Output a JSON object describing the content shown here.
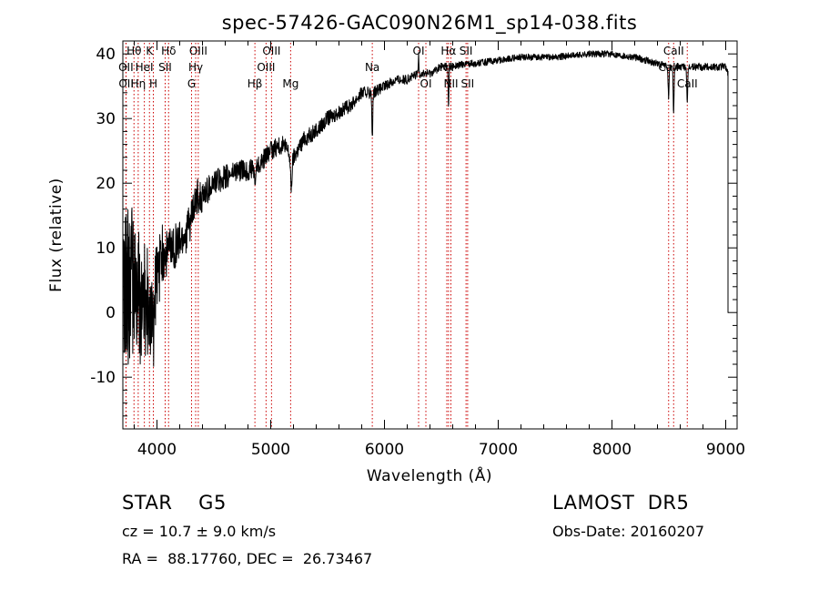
{
  "chart_data": {
    "type": "line",
    "title": "spec-57426-GAC090N26M1_sp14-038.fits",
    "xlabel": "Wavelength (Å)",
    "ylabel": "Flux (relative)",
    "xlim": [
      3700,
      9100
    ],
    "ylim": [
      -18,
      42
    ],
    "xticks": [
      4000,
      5000,
      6000,
      7000,
      8000,
      9000
    ],
    "yticks": [
      -10,
      0,
      10,
      20,
      30,
      40
    ],
    "grid": false,
    "line_color": "#000000",
    "line_marker_color": "#cc0000",
    "trend": [
      [
        3700,
        4
      ],
      [
        3750,
        5
      ],
      [
        3800,
        3
      ],
      [
        3850,
        2
      ],
      [
        3900,
        1
      ],
      [
        3950,
        3
      ],
      [
        4000,
        5
      ],
      [
        4050,
        9
      ],
      [
        4100,
        10
      ],
      [
        4150,
        10
      ],
      [
        4200,
        11
      ],
      [
        4250,
        12
      ],
      [
        4300,
        14
      ],
      [
        4350,
        18
      ],
      [
        4400,
        18
      ],
      [
        4450,
        19
      ],
      [
        4500,
        20
      ],
      [
        4600,
        21
      ],
      [
        4700,
        22
      ],
      [
        4800,
        22
      ],
      [
        4900,
        23
      ],
      [
        5000,
        25
      ],
      [
        5100,
        26
      ],
      [
        5200,
        24
      ],
      [
        5300,
        27
      ],
      [
        5400,
        28
      ],
      [
        5500,
        30
      ],
      [
        5600,
        31
      ],
      [
        5700,
        32
      ],
      [
        5800,
        34
      ],
      [
        5900,
        34
      ],
      [
        6000,
        35
      ],
      [
        6100,
        36
      ],
      [
        6200,
        36
      ],
      [
        6300,
        37
      ],
      [
        6400,
        37
      ],
      [
        6500,
        38
      ],
      [
        6600,
        38
      ],
      [
        6700,
        38.5
      ],
      [
        6800,
        38.5
      ],
      [
        7000,
        39
      ],
      [
        7200,
        39.5
      ],
      [
        7500,
        39.5
      ],
      [
        7800,
        40
      ],
      [
        8000,
        40
      ],
      [
        8200,
        39.5
      ],
      [
        8400,
        38.5
      ],
      [
        8500,
        38
      ],
      [
        8700,
        38
      ],
      [
        8900,
        38
      ],
      [
        9000,
        38
      ],
      [
        9020,
        37
      ]
    ],
    "noise": [
      [
        3700,
        14
      ],
      [
        3900,
        10
      ],
      [
        4000,
        6
      ],
      [
        4100,
        4
      ],
      [
        4300,
        3
      ],
      [
        4500,
        2
      ],
      [
        4800,
        1.6
      ],
      [
        5500,
        1.2
      ],
      [
        6000,
        0.8
      ],
      [
        6500,
        0.6
      ],
      [
        7000,
        0.5
      ],
      [
        8000,
        0.5
      ],
      [
        9000,
        0.6
      ]
    ],
    "absorption_features": [
      {
        "x": 3934,
        "depth": 8,
        "width": 8
      },
      {
        "x": 3968,
        "depth": 8,
        "width": 8
      },
      {
        "x": 4861,
        "depth": 3,
        "width": 8
      },
      {
        "x": 5180,
        "depth": 5,
        "width": 10
      },
      {
        "x": 5893,
        "depth": 7,
        "width": 6
      },
      {
        "x": 6563,
        "depth": 6,
        "width": 5
      },
      {
        "x": 8498,
        "depth": 5,
        "width": 6
      },
      {
        "x": 8542,
        "depth": 7,
        "width": 6
      },
      {
        "x": 8662,
        "depth": 6,
        "width": 6
      }
    ],
    "emission_features": [
      {
        "x": 6300,
        "height": 3,
        "width": 4
      }
    ],
    "lines": [
      {
        "label": "Hθ",
        "x": 3798,
        "row": 0
      },
      {
        "label": "K",
        "x": 3934,
        "row": 0
      },
      {
        "label": "Hδ",
        "x": 4102,
        "row": 0
      },
      {
        "label": "OIII",
        "x": 4363,
        "row": 0
      },
      {
        "label": "OIII",
        "x": 5007,
        "row": 0
      },
      {
        "label": "OI",
        "x": 6300,
        "row": 0
      },
      {
        "label": "Hα",
        "x": 6563,
        "row": 0
      },
      {
        "label": "SII",
        "x": 6717,
        "row": 0
      },
      {
        "label": "CaII",
        "x": 8542,
        "row": 0
      },
      {
        "label": "OII",
        "x": 3727,
        "row": 1
      },
      {
        "label": "HeI",
        "x": 3889,
        "row": 1
      },
      {
        "label": "SII",
        "x": 4072,
        "row": 1
      },
      {
        "label": "Hγ",
        "x": 4340,
        "row": 1
      },
      {
        "label": "OIII",
        "x": 4959,
        "row": 1
      },
      {
        "label": "Na",
        "x": 5893,
        "row": 1
      },
      {
        "label": "NII",
        "x": 6548,
        "row": 1
      },
      {
        "label": "CaII",
        "x": 8498,
        "row": 1
      },
      {
        "label": "OII",
        "x": 3729,
        "row": 2
      },
      {
        "label": "Hη",
        "x": 3835,
        "row": 2
      },
      {
        "label": "H",
        "x": 3968,
        "row": 2
      },
      {
        "label": "G",
        "x": 4304,
        "row": 2
      },
      {
        "label": "Hβ",
        "x": 4861,
        "row": 2
      },
      {
        "label": "Mg",
        "x": 5175,
        "row": 2
      },
      {
        "label": "OI",
        "x": 6364,
        "row": 2
      },
      {
        "label": "NII",
        "x": 6584,
        "row": 2
      },
      {
        "label": "SII",
        "x": 6731,
        "row": 2
      },
      {
        "label": "CaII",
        "x": 8662,
        "row": 2
      }
    ]
  },
  "info": {
    "object_class": "STAR    G5",
    "survey": "LAMOST  DR5",
    "redshift": "cz = 10.7 ± 9.0 km/s",
    "obs_date": "Obs-Date: 20160207",
    "coords": "RA =  88.17760, DEC =  26.73467"
  }
}
